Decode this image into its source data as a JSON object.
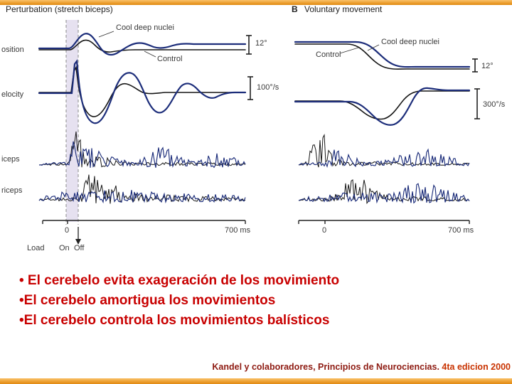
{
  "colors": {
    "trace_blue": "#1c2d7a",
    "trace_black": "#161616",
    "band_fill": "#d5cde6",
    "bullet_red": "#c80000",
    "citation_dark": "#8e1b12",
    "citation_accent": "#c83200",
    "border_orange": "#eda032"
  },
  "figure": {
    "panel_a": {
      "title": "Perturbation (stretch biceps)",
      "row_labels": [
        "osition",
        "elocity",
        "iceps",
        "riceps"
      ],
      "labels": {
        "cool": "Cool deep nuclei",
        "control": "Control",
        "position_scale": "12°",
        "velocity_scale": "100°/s",
        "t0": "0",
        "t_end": "700 ms",
        "load": "Load",
        "on": "On",
        "off": "Off"
      }
    },
    "panel_b": {
      "letter": "B",
      "title": "Voluntary movement",
      "labels": {
        "control": "Control",
        "cool": "Cool deep nuclei",
        "position_scale": "12°",
        "velocity_scale": "300°/s",
        "t0": "0",
        "t_end": "700 ms"
      }
    }
  },
  "bullets": [
    "• El cerebelo evita exageración de los movimiento",
    "•El cerebelo amortigua los movimientos",
    "•El cerebelo controla los movimientos balísticos"
  ],
  "citation": {
    "main": "Kandel y colaboradores, Principios de Neurociencias.",
    "edition": " 4ta edicion 2000"
  }
}
